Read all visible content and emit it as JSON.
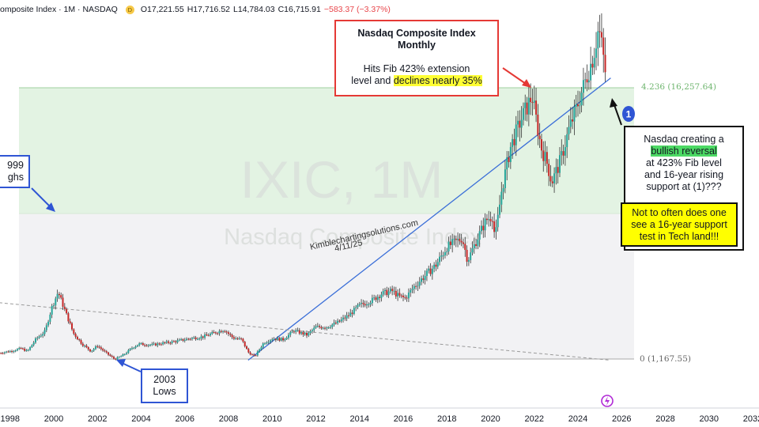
{
  "header": {
    "title": "omposite Index · 1M · NASDAQ",
    "badge": "D",
    "open": "O17,221.55",
    "high": "H17,716.52",
    "low": "L14,784.03",
    "close": "C16,715.91",
    "change": "−583.37 (−3.37%)"
  },
  "chart_data": {
    "type": "line",
    "ticker_watermark": "IXIC, 1M",
    "name_watermark": "Nasdaq Composite Index",
    "x_ticks": [
      "1998",
      "2000",
      "2002",
      "2004",
      "2006",
      "2008",
      "2010",
      "2012",
      "2014",
      "2016",
      "2018",
      "2020",
      "2022",
      "2024",
      "2026",
      "2028",
      "2030",
      "2032"
    ],
    "fib_levels": [
      {
        "label": "4.236 (16,257.64)",
        "value": 16257.64
      },
      {
        "label": "0 (1,167.55)",
        "value": 1167.55
      }
    ],
    "series": [
      {
        "values": [
          [
            1997.5,
            1500
          ],
          [
            1998.0,
            1600
          ],
          [
            1998.5,
            1750
          ],
          [
            1998.8,
            1600
          ],
          [
            1999.2,
            2300
          ],
          [
            1999.6,
            2700
          ],
          [
            1999.9,
            4000
          ],
          [
            2000.2,
            4900
          ],
          [
            2000.5,
            3900
          ],
          [
            2000.9,
            2600
          ],
          [
            2001.3,
            2000
          ],
          [
            2001.7,
            1600
          ],
          [
            2002.0,
            1900
          ],
          [
            2002.4,
            1500
          ],
          [
            2002.8,
            1150
          ],
          [
            2003.2,
            1400
          ],
          [
            2003.6,
            1800
          ],
          [
            2003.9,
            2000
          ],
          [
            2004.5,
            1950
          ],
          [
            2005.0,
            2050
          ],
          [
            2005.6,
            2150
          ],
          [
            2006.2,
            2300
          ],
          [
            2006.8,
            2400
          ],
          [
            2007.3,
            2600
          ],
          [
            2007.8,
            2800
          ],
          [
            2008.2,
            2350
          ],
          [
            2008.6,
            2250
          ],
          [
            2008.9,
            1550
          ],
          [
            2009.2,
            1300
          ],
          [
            2009.6,
            2050
          ],
          [
            2010.0,
            2300
          ],
          [
            2010.5,
            2250
          ],
          [
            2011.0,
            2750
          ],
          [
            2011.6,
            2500
          ],
          [
            2012.0,
            2950
          ],
          [
            2012.5,
            2950
          ],
          [
            2013.0,
            3200
          ],
          [
            2013.5,
            3600
          ],
          [
            2014.0,
            4150
          ],
          [
            2014.6,
            4450
          ],
          [
            2015.0,
            4800
          ],
          [
            2015.5,
            4950
          ],
          [
            2015.8,
            4650
          ],
          [
            2016.1,
            4550
          ],
          [
            2016.5,
            5200
          ],
          [
            2017.0,
            5800
          ],
          [
            2017.5,
            6400
          ],
          [
            2018.0,
            7400
          ],
          [
            2018.7,
            7900
          ],
          [
            2018.95,
            6650
          ],
          [
            2019.4,
            7900
          ],
          [
            2019.8,
            8900
          ],
          [
            2020.1,
            9150
          ],
          [
            2020.2,
            7800
          ],
          [
            2020.5,
            10500
          ],
          [
            2020.9,
            12900
          ],
          [
            2021.4,
            14500
          ],
          [
            2021.9,
            15800
          ],
          [
            2022.3,
            13000
          ],
          [
            2022.6,
            12000
          ],
          [
            2022.8,
            11000
          ],
          [
            2023.2,
            12200
          ],
          [
            2023.6,
            14000
          ],
          [
            2023.9,
            15000
          ],
          [
            2024.3,
            16500
          ],
          [
            2024.7,
            18000
          ],
          [
            2024.95,
            19600
          ],
          [
            2025.1,
            18500
          ],
          [
            2025.3,
            16715
          ]
        ]
      }
    ],
    "trendlines": [
      {
        "style": "solid",
        "from": [
          2008.9,
          1100
        ],
        "to": [
          2025.5,
          16800
        ]
      },
      {
        "style": "dashed",
        "from": [
          1997.5,
          4300
        ],
        "to": [
          2025.5,
          1100
        ]
      }
    ],
    "signature": "Kimblechartingsolutions.com",
    "date_stamp": "4/11/25",
    "marker": "1"
  },
  "annotations": {
    "top_title": "Nasdaq Composite Index",
    "top_subtitle": "Monthly",
    "top_line1": "Hits Fib 423% extension",
    "top_line2_a": "level and",
    "top_line2_hl": "declines nearly 35%",
    "left_line1": "999",
    "left_line2": "ghs",
    "bottom_line1": "2003",
    "bottom_line2": "Lows",
    "right_line1": "Nasdaq creating a",
    "right_hl": "bullish reversal",
    "right_line2": "at 423% Fib level",
    "right_line3": "and 16-year rising",
    "right_line4": "support at (1)???",
    "right_inner": "Not to often does one see a 16-year support test in Tech land!!!"
  },
  "colors": {
    "candle_up": "#26a69a",
    "candle_down": "#c62828",
    "fib_band": "#e3f3e3",
    "lower_band": "#f2f2f4",
    "trendline": "#3b6fd8",
    "red_box": "#e53935",
    "blue_box": "#2f55d4"
  }
}
